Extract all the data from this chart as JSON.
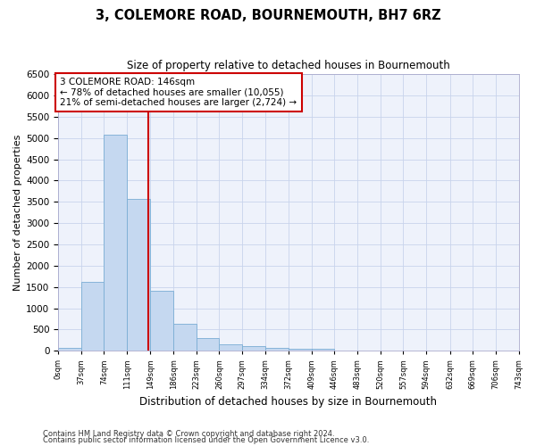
{
  "title": "3, COLEMORE ROAD, BOURNEMOUTH, BH7 6RZ",
  "subtitle": "Size of property relative to detached houses in Bournemouth",
  "xlabel": "Distribution of detached houses by size in Bournemouth",
  "ylabel": "Number of detached properties",
  "property_line_x": 146,
  "annotation_text": "3 COLEMORE ROAD: 146sqm\n← 78% of detached houses are smaller (10,055)\n21% of semi-detached houses are larger (2,724) →",
  "footnote1": "Contains HM Land Registry data © Crown copyright and database right 2024.",
  "footnote2": "Contains public sector information licensed under the Open Government Licence v3.0.",
  "bin_edges": [
    0,
    37,
    74,
    111,
    149,
    186,
    223,
    260,
    297,
    334,
    372,
    409,
    446,
    483,
    520,
    557,
    594,
    632,
    669,
    706,
    743
  ],
  "bar_heights": [
    75,
    1625,
    5075,
    3575,
    1400,
    625,
    300,
    150,
    100,
    60,
    45,
    55,
    0,
    0,
    0,
    0,
    0,
    0,
    0,
    0
  ],
  "bar_color": "#c5d8f0",
  "bar_edge_color": "#7aadd4",
  "line_color": "#cc0000",
  "bg_color": "#eef2fb",
  "grid_color": "#c8d4ec",
  "ylim": [
    0,
    6500
  ],
  "yticks": [
    0,
    500,
    1000,
    1500,
    2000,
    2500,
    3000,
    3500,
    4000,
    4500,
    5000,
    5500,
    6000,
    6500
  ]
}
